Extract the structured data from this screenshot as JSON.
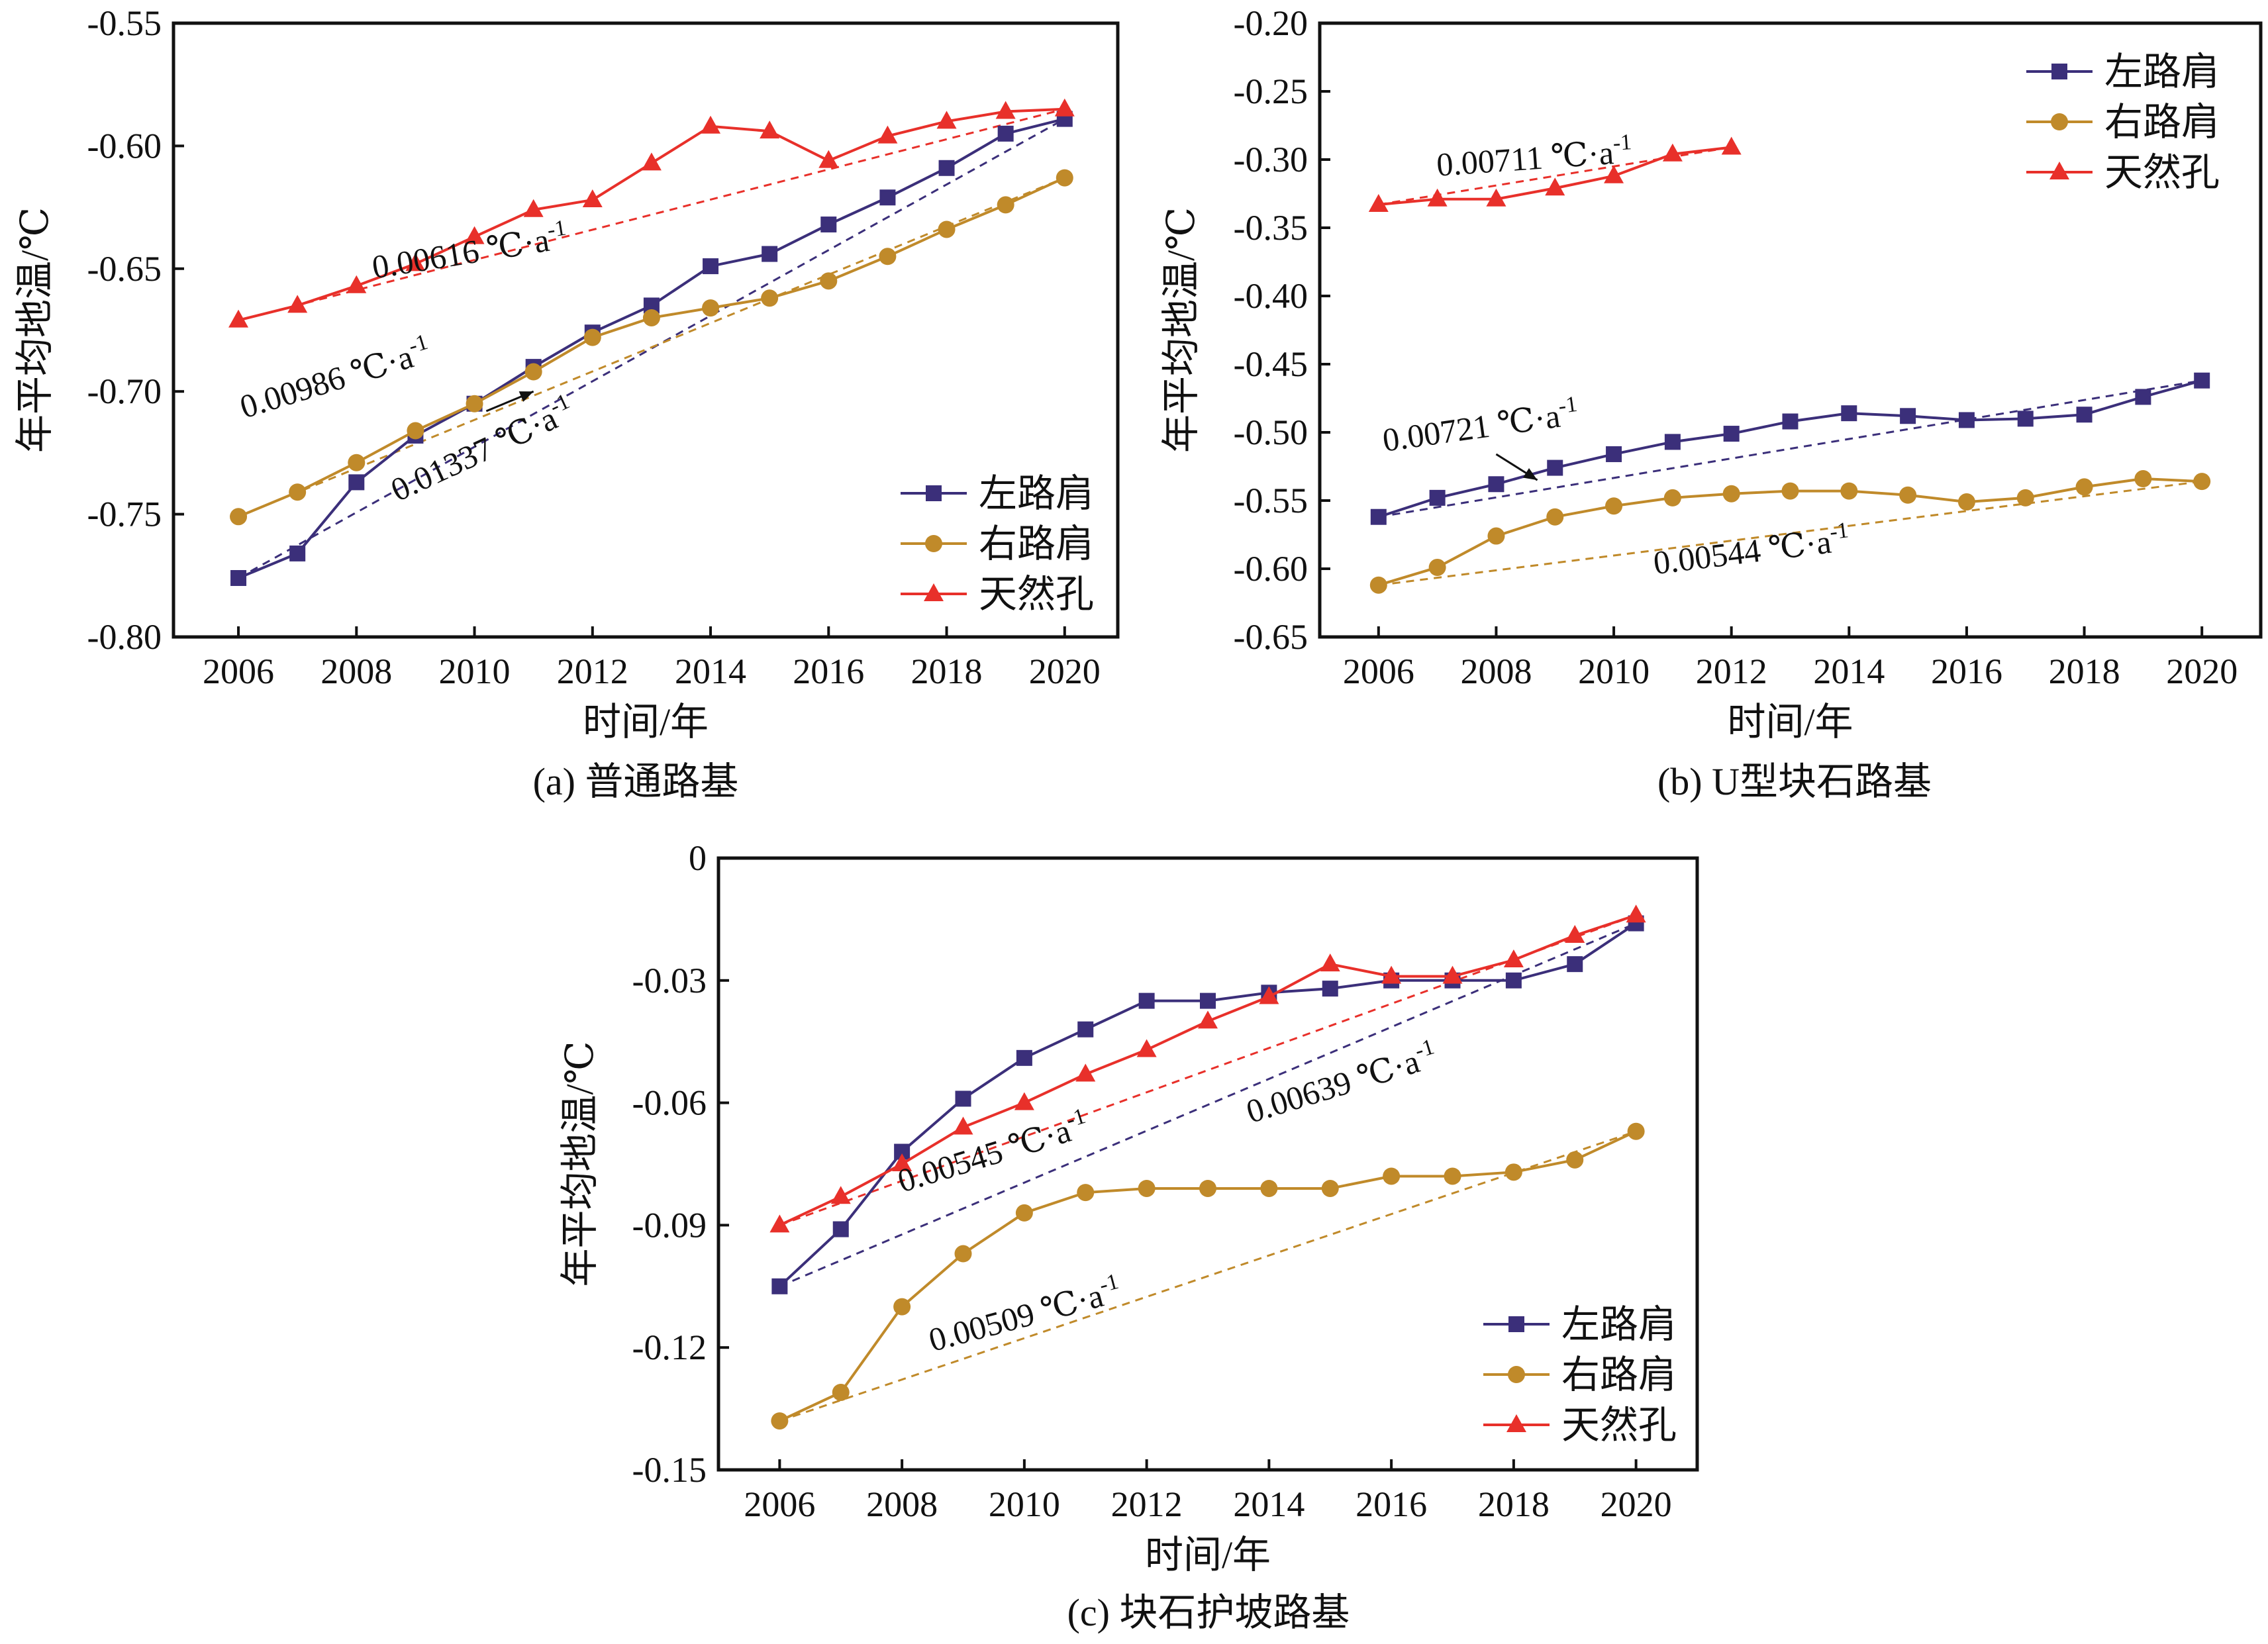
{
  "colors": {
    "left": "#3b2f7a",
    "right": "#c08a2a",
    "natural": "#e8302a",
    "axis": "#111111"
  },
  "chart_data": [
    {
      "type": "line",
      "caption": "(a) 普通路基",
      "xlabel": "时间/年",
      "ylabel": "年平均地温/℃",
      "xlim": [
        2004.9,
        2020.9
      ],
      "ylim": [
        -0.8,
        -0.55
      ],
      "xticks": [
        2006,
        2008,
        2010,
        2012,
        2014,
        2016,
        2018,
        2020
      ],
      "xtick_labels": [
        "2006",
        "2008",
        "2010",
        "2012",
        "2014",
        "2016",
        "2018",
        "2020"
      ],
      "yticks": [
        -0.8,
        -0.75,
        -0.7,
        -0.65,
        -0.6,
        -0.55
      ],
      "ytick_labels": [
        "-0.80",
        "-0.75",
        "-0.70",
        "-0.65",
        "-0.60",
        "-0.55"
      ],
      "legend": "bottom-right",
      "x": [
        2006,
        2007,
        2008,
        2009,
        2010,
        2011,
        2012,
        2013,
        2014,
        2015,
        2016,
        2017,
        2018,
        2019,
        2020
      ],
      "series": [
        {
          "name": "左路肩",
          "key": "left",
          "marker": "square",
          "values": [
            -0.776,
            -0.766,
            -0.737,
            -0.718,
            -0.705,
            -0.69,
            -0.676,
            -0.665,
            -0.649,
            -0.644,
            -0.632,
            -0.621,
            -0.609,
            -0.595,
            -0.589
          ],
          "trend": [
            -0.776,
            -0.589
          ]
        },
        {
          "name": "右路肩",
          "key": "right",
          "marker": "circle",
          "values": [
            -0.751,
            -0.741,
            -0.729,
            -0.716,
            -0.705,
            -0.692,
            -0.678,
            -0.67,
            -0.666,
            -0.662,
            -0.655,
            -0.645,
            -0.634,
            -0.624,
            -0.613
          ],
          "trend": [
            -0.751,
            -0.613
          ]
        },
        {
          "name": "天然孔",
          "key": "natural",
          "marker": "triangle",
          "values": [
            -0.671,
            -0.665,
            -0.657,
            -0.648,
            -0.637,
            -0.626,
            -0.622,
            -0.607,
            -0.592,
            -0.594,
            -0.606,
            -0.596,
            -0.59,
            -0.586,
            -0.585
          ],
          "trend": [
            -0.671,
            -0.585
          ]
        }
      ],
      "annotations": [
        {
          "text": "0.00616 ℃·a",
          "sup": "-1",
          "x": 2008.3,
          "y": -0.654,
          "rotate": -9
        },
        {
          "text": "0.00986 ℃·a",
          "sup": "-1",
          "x": 2006.1,
          "y": -0.711,
          "rotate": -17
        },
        {
          "text": "0.01337 ℃·a",
          "sup": "-1",
          "x": 2008.7,
          "y": -0.745,
          "rotate": -25
        }
      ],
      "arrows": [
        {
          "from": [
            2010.2,
            -0.708
          ],
          "to": [
            2011.0,
            -0.7
          ]
        }
      ]
    },
    {
      "type": "line",
      "caption": "(b) U型块石路基",
      "xlabel": "时间/年",
      "ylabel": "年平均地温/℃",
      "xlim": [
        2005.0,
        2021.0
      ],
      "ylim": [
        -0.65,
        -0.2
      ],
      "xticks": [
        2006,
        2008,
        2010,
        2012,
        2014,
        2016,
        2018,
        2020
      ],
      "xtick_labels": [
        "2006",
        "2008",
        "2010",
        "2012",
        "2014",
        "2016",
        "2018",
        "2020"
      ],
      "yticks": [
        -0.65,
        -0.6,
        -0.55,
        -0.5,
        -0.45,
        -0.4,
        -0.35,
        -0.3,
        -0.25,
        -0.2
      ],
      "ytick_labels": [
        "-0.65",
        "-0.60",
        "-0.55",
        "-0.50",
        "-0.45",
        "-0.40",
        "-0.35",
        "-0.30",
        "-0.25",
        "-0.20"
      ],
      "legend": "top-right",
      "series": [
        {
          "name": "左路肩",
          "key": "left",
          "marker": "square",
          "x": [
            2006,
            2007,
            2008,
            2009,
            2010,
            2011,
            2012,
            2013,
            2014,
            2015,
            2016,
            2017,
            2018,
            2019,
            2020
          ],
          "values": [
            -0.562,
            -0.548,
            -0.538,
            -0.526,
            -0.516,
            -0.507,
            -0.501,
            -0.492,
            -0.486,
            -0.488,
            -0.491,
            -0.49,
            -0.487,
            -0.474,
            -0.462
          ],
          "trend_x": [
            2006,
            2020
          ],
          "trend": [
            -0.562,
            -0.462
          ]
        },
        {
          "name": "右路肩",
          "key": "right",
          "marker": "circle",
          "x": [
            2006,
            2007,
            2008,
            2009,
            2010,
            2011,
            2012,
            2013,
            2014,
            2015,
            2016,
            2017,
            2018,
            2019,
            2020
          ],
          "values": [
            -0.612,
            -0.599,
            -0.576,
            -0.562,
            -0.554,
            -0.548,
            -0.545,
            -0.543,
            -0.543,
            -0.546,
            -0.551,
            -0.548,
            -0.54,
            -0.534,
            -0.536
          ],
          "trend_x": [
            2006,
            2020
          ],
          "trend": [
            -0.612,
            -0.536
          ]
        },
        {
          "name": "天然孔",
          "key": "natural",
          "marker": "triangle",
          "x": [
            2006,
            2007,
            2008,
            2009,
            2010,
            2011,
            2012
          ],
          "values": [
            -0.333,
            -0.329,
            -0.329,
            -0.321,
            -0.312,
            -0.296,
            -0.291
          ],
          "trend_x": [
            2006,
            2012
          ],
          "trend": [
            -0.333,
            -0.291
          ]
        }
      ],
      "annotations": [
        {
          "text": "0.00711 ℃·a",
          "sup": "-1",
          "x": 2007.0,
          "y": -0.312,
          "rotate": -4
        },
        {
          "text": "0.00721 ℃·a",
          "sup": "-1",
          "x": 2006.1,
          "y": -0.514,
          "rotate": -8
        },
        {
          "text": "0.00544 ℃·a",
          "sup": "-1",
          "x": 2010.7,
          "y": -0.604,
          "rotate": -7
        }
      ],
      "arrows": [
        {
          "from": [
            2008.0,
            -0.516
          ],
          "to": [
            2008.7,
            -0.535
          ]
        }
      ]
    },
    {
      "type": "line",
      "caption": "(c) 块石护坡路基",
      "xlabel": "时间/年",
      "ylabel": "年平均地温/℃",
      "xlim": [
        2005.0,
        2021.0
      ],
      "ylim": [
        -0.15,
        0
      ],
      "xticks": [
        2006,
        2008,
        2010,
        2012,
        2014,
        2016,
        2018,
        2020
      ],
      "xtick_labels": [
        "2006",
        "2008",
        "2010",
        "2012",
        "2014",
        "2016",
        "2018",
        "2020"
      ],
      "yticks": [
        -0.15,
        -0.12,
        -0.09,
        -0.06,
        -0.03,
        0
      ],
      "ytick_labels": [
        "-0.15",
        "-0.12",
        "-0.09",
        "-0.06",
        "-0.03",
        "0"
      ],
      "legend": "bottom-right",
      "x": [
        2006,
        2007,
        2008,
        2009,
        2010,
        2011,
        2012,
        2013,
        2014,
        2015,
        2016,
        2017,
        2018,
        2019,
        2020
      ],
      "series": [
        {
          "name": "左路肩",
          "key": "left",
          "marker": "square",
          "values": [
            -0.105,
            -0.091,
            -0.072,
            -0.059,
            -0.049,
            -0.042,
            -0.035,
            -0.035,
            -0.033,
            -0.032,
            -0.03,
            -0.03,
            -0.03,
            -0.026,
            -0.016
          ],
          "trend": [
            -0.105,
            -0.016
          ]
        },
        {
          "name": "右路肩",
          "key": "right",
          "marker": "circle",
          "values": [
            -0.138,
            -0.131,
            -0.11,
            -0.097,
            -0.087,
            -0.082,
            -0.081,
            -0.081,
            -0.081,
            -0.081,
            -0.078,
            -0.078,
            -0.077,
            -0.074,
            -0.067
          ],
          "trend": [
            -0.138,
            -0.067
          ]
        },
        {
          "name": "天然孔",
          "key": "natural",
          "marker": "triangle",
          "values": [
            -0.09,
            -0.083,
            -0.075,
            -0.066,
            -0.06,
            -0.053,
            -0.047,
            -0.04,
            -0.034,
            -0.026,
            -0.029,
            -0.029,
            -0.025,
            -0.019,
            -0.014
          ],
          "trend": [
            -0.09,
            -0.014
          ]
        }
      ],
      "annotations": [
        {
          "text": "0.00545 ℃·a",
          "sup": "-1",
          "x": 2008.0,
          "y": -0.082,
          "rotate": -17
        },
        {
          "text": "0.00639 ℃·a",
          "sup": "-1",
          "x": 2013.7,
          "y": -0.065,
          "rotate": -17
        },
        {
          "text": "0.00509 ℃·a",
          "sup": "-1",
          "x": 2008.5,
          "y": -0.121,
          "rotate": -15
        }
      ],
      "arrows": []
    }
  ]
}
